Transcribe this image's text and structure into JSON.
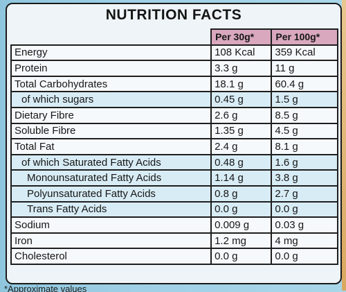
{
  "title": "NUTRITION FACTS",
  "columns": [
    "Per 30g*",
    "Per 100g*"
  ],
  "rows": [
    {
      "name": "Energy",
      "per30": "108 Kcal",
      "per100": "359 Kcal"
    },
    {
      "name": "Protein",
      "per30": "3.3 g",
      "per100": "11 g"
    },
    {
      "name": "Total Carbohydrates",
      "per30": "18.1 g",
      "per100": "60.4 g"
    },
    {
      "name": "of which sugars",
      "per30": "0.45 g",
      "per100": "1.5 g"
    },
    {
      "name": "Dietary Fibre",
      "per30": "2.6 g",
      "per100": "8.5 g"
    },
    {
      "name": "Soluble Fibre",
      "per30": "1.35 g",
      "per100": "4.5 g"
    },
    {
      "name": "Total Fat",
      "per30": "2.4 g",
      "per100": "8.1 g"
    },
    {
      "name": "of which Saturated Fatty Acids",
      "per30": "0.48 g",
      "per100": "1.6 g"
    },
    {
      "name": "Monounsaturated Fatty Acids",
      "per30": "1.14 g",
      "per100": "3.8 g"
    },
    {
      "name": "Polyunsaturated Fatty Acids",
      "per30": "0.8 g",
      "per100": "2.7 g"
    },
    {
      "name": "Trans Fatty Acids",
      "per30": "0.0 g",
      "per100": "0.0 g"
    },
    {
      "name": "Sodium",
      "per30": "0.009 g",
      "per100": "0.03 g"
    },
    {
      "name": "Iron",
      "per30": "1.2 mg",
      "per100": "4 mg"
    },
    {
      "name": "Cholesterol",
      "per30": "0.0 g",
      "per100": "0.0 g"
    }
  ],
  "footnote": "*Approximate values",
  "colors": {
    "header_pink": "#d9a8be",
    "row_blue": "#d8ecf5",
    "row_white": "#f6f9fb"
  }
}
